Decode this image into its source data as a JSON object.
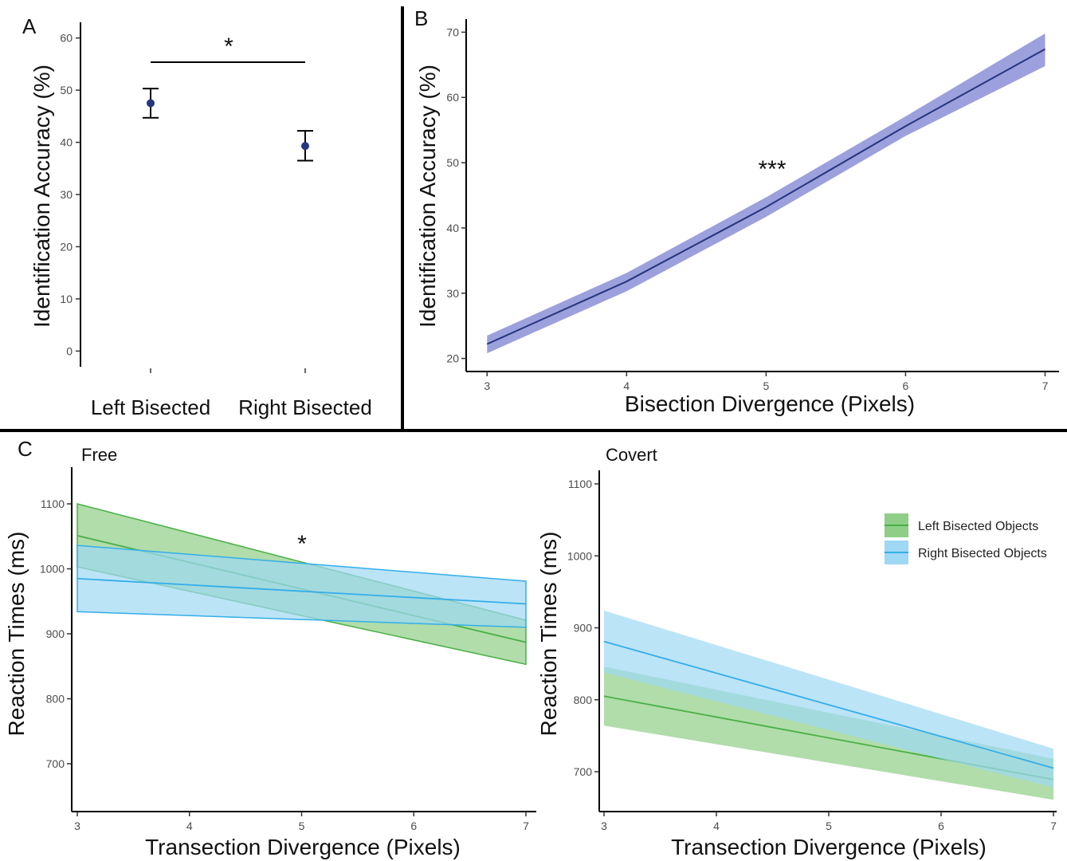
{
  "colors": {
    "navy": "#26357f",
    "band": "#8b8fd6",
    "green": "#4aaf46",
    "green_fill": "#8fce86",
    "blue": "#33aee8",
    "blue_fill": "#9ed8f4",
    "teal_overlap": "#6fc0a8"
  },
  "chart_data": [
    {
      "id": "A",
      "type": "scatter",
      "panel_label": "A",
      "title": "",
      "categories": [
        "Left Bisected",
        "Right Bisected"
      ],
      "values": [
        47.5,
        39.3
      ],
      "error_low": [
        44.7,
        36.5
      ],
      "error_high": [
        50.3,
        42.2
      ],
      "ylabel": "Identification Accuracy (%)",
      "xlabel": "",
      "yticks": [
        0,
        10,
        20,
        30,
        40,
        50,
        60
      ],
      "ylim": [
        -3,
        63
      ],
      "significance": "*",
      "grid": false
    },
    {
      "id": "B",
      "type": "line",
      "panel_label": "B",
      "title": "",
      "x": [
        3,
        4,
        5,
        6,
        7
      ],
      "series": [
        {
          "values": [
            22.2,
            31.8,
            43.2,
            55.6,
            67.4
          ],
          "ci_low": [
            20.8,
            30.3,
            41.7,
            54.1,
            64.8
          ],
          "ci_high": [
            23.5,
            33.1,
            44.7,
            57.1,
            69.8
          ]
        }
      ],
      "xlabel": "Bisection Divergence (Pixels)",
      "ylabel": "Identification Accuracy (%)",
      "xticks": [
        3,
        4,
        5,
        6,
        7
      ],
      "yticks": [
        20,
        30,
        40,
        50,
        60,
        70
      ],
      "xlim": [
        2.85,
        7.1
      ],
      "ylim": [
        18,
        72
      ],
      "significance": "***",
      "grid": false
    },
    {
      "id": "C1",
      "type": "line",
      "panel_label": "C",
      "subtitle": "Free",
      "x": [
        3,
        7
      ],
      "series": [
        {
          "name": "Left Bisected Objects",
          "color": "green",
          "values": [
            1051,
            887
          ],
          "ci_low": [
            1003,
            853
          ],
          "ci_high": [
            1100,
            921
          ]
        },
        {
          "name": "Right Bisected Objects",
          "color": "blue",
          "values": [
            985,
            946
          ],
          "ci_low": [
            934,
            910
          ],
          "ci_high": [
            1036,
            981
          ]
        }
      ],
      "xlabel": "Transection Divergence (Pixels)",
      "ylabel": "Reaction Times (ms)",
      "xticks": [
        3,
        4,
        5,
        6,
        7
      ],
      "yticks": [
        700,
        800,
        900,
        1000,
        1100
      ],
      "xlim": [
        2.95,
        7.1
      ],
      "ylim": [
        635,
        1125
      ],
      "significance": "*",
      "grid": false
    },
    {
      "id": "C2",
      "type": "line",
      "subtitle": "Covert",
      "x": [
        3,
        7
      ],
      "series": [
        {
          "name": "Left Bisected Objects",
          "color": "green",
          "values": [
            805,
            689
          ],
          "ci_low": [
            764,
            661
          ],
          "ci_high": [
            846,
            718
          ]
        },
        {
          "name": "Right Bisected Objects",
          "color": "blue",
          "values": [
            881,
            705
          ],
          "ci_low": [
            838,
            678
          ],
          "ci_high": [
            924,
            732
          ]
        }
      ],
      "xlabel": "Transection Divergence (Pixels)",
      "ylabel": "Reaction Times (ms)",
      "xticks": [
        3,
        4,
        5,
        6,
        7
      ],
      "yticks": [
        700,
        800,
        900,
        1000,
        1100
      ],
      "xlim": [
        3,
        7
      ],
      "ylim": [
        645,
        1120
      ],
      "legend": {
        "position": "top-right",
        "entries": [
          "Left Bisected Objects",
          "Right Bisected Objects"
        ]
      },
      "grid": false
    }
  ]
}
